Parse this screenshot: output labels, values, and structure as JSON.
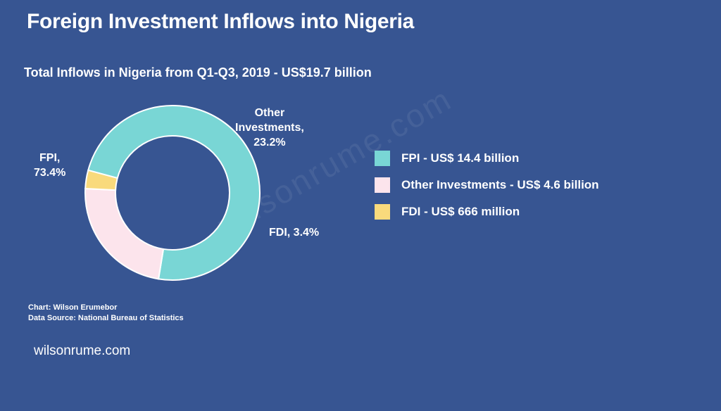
{
  "title": "Foreign Investment Inflows into Nigeria",
  "watermark_text": "wilsonrume.com",
  "site": "wilsonrume.com",
  "credits": {
    "author": "Chart: Wilson Erumebor",
    "source": "Data Source: National Bureau of Statistics"
  },
  "chart_data": {
    "type": "pie",
    "title": "Total Inflows in Nigeria from Q1-Q3, 2019 - US$19.7 billion",
    "slices": [
      {
        "name": "FPI",
        "value": 73.4,
        "label_lines": [
          "FPI,",
          "73.4%"
        ],
        "legend": "FPI - US$ 14.4 billion",
        "color": "#79D6D5"
      },
      {
        "name": "Other Investments",
        "value": 23.2,
        "label_lines": [
          "Other",
          "Investments,",
          "23.2%"
        ],
        "legend": "Other Investments - US$ 4.6 billion",
        "color": "#FCE4EC"
      },
      {
        "name": "FDI",
        "value": 3.4,
        "label_lines": [
          "FDI, 3.4%"
        ],
        "legend": "FDI - US$ 666 million",
        "color": "#F9DA7C"
      }
    ],
    "legend_position": "right"
  }
}
